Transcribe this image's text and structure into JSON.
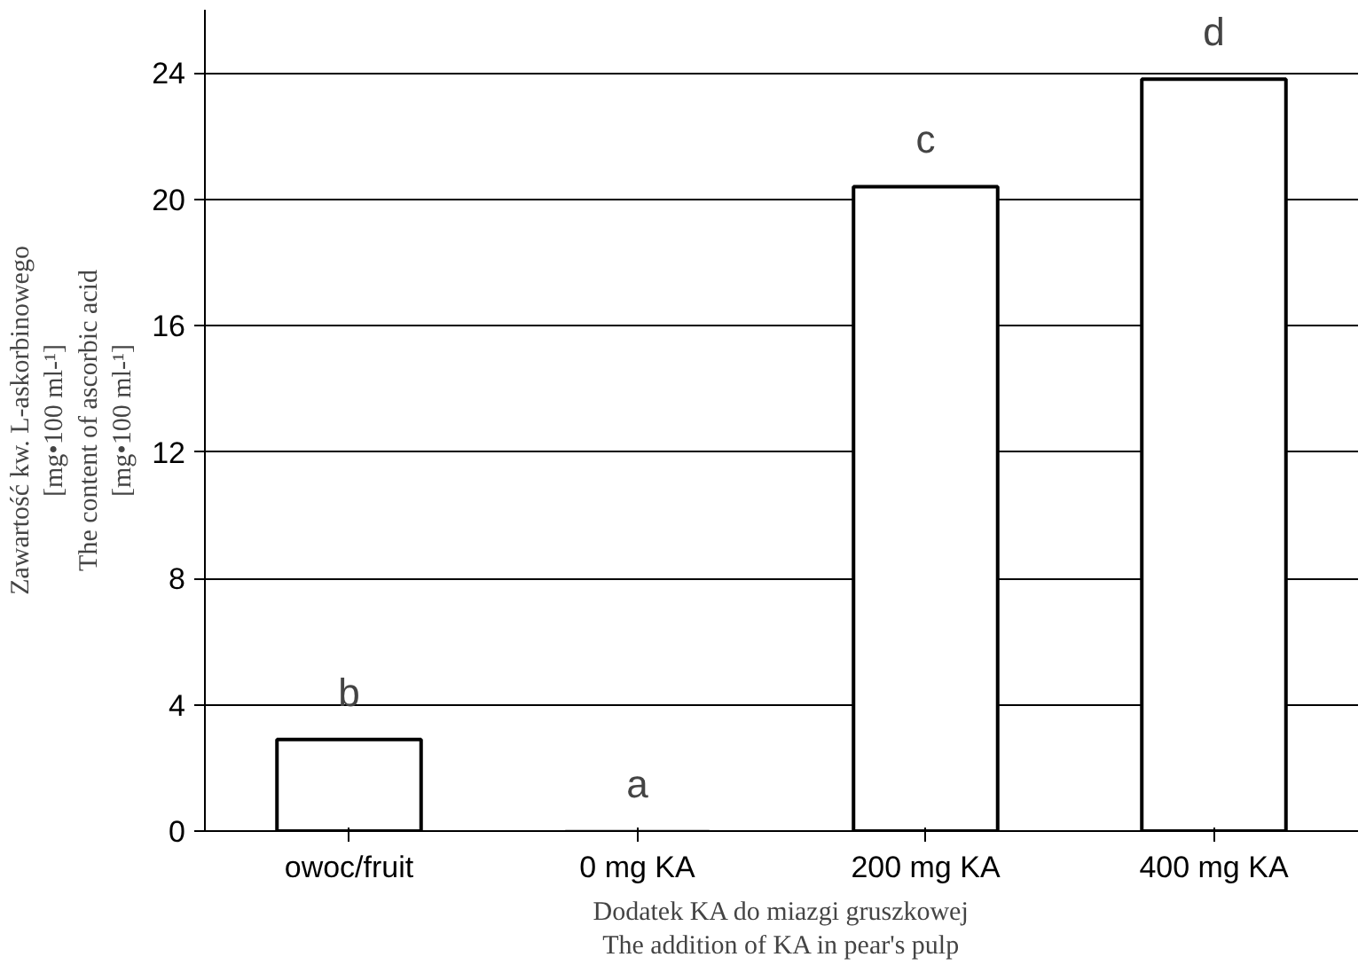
{
  "chart_data": {
    "type": "bar",
    "xlabel": "Dodatek KA do miazgi gruszkowej\nThe addition of KA in pear's pulp",
    "ylabel": "Zawartość kw. L-askorbinowego\n[mg•100 ml-¹]\nThe content of ascorbic acid\n[mg•100 ml-¹]",
    "categories": [
      "owoc/fruit",
      "0 mg KA",
      "200 mg KA",
      "400 mg KA"
    ],
    "values": [
      2.9,
      0,
      20.4,
      23.8
    ],
    "colors": [
      "#ffffff",
      "#c0c0c0",
      "#ffffff",
      "#ffffff"
    ],
    "ylim": [
      0,
      26
    ],
    "yticks": [
      0,
      4,
      8,
      12,
      16,
      20,
      24
    ],
    "grid": "y",
    "annotations": [
      {
        "text": "b",
        "x": "owoc/fruit",
        "y": 2.9
      },
      {
        "text": "a",
        "x": "0 mg KA",
        "y": 0
      },
      {
        "text": "c",
        "x": "200 mg KA",
        "y": 20.4
      },
      {
        "text": "d",
        "x": "400 mg KA",
        "y": 23.8
      }
    ]
  }
}
